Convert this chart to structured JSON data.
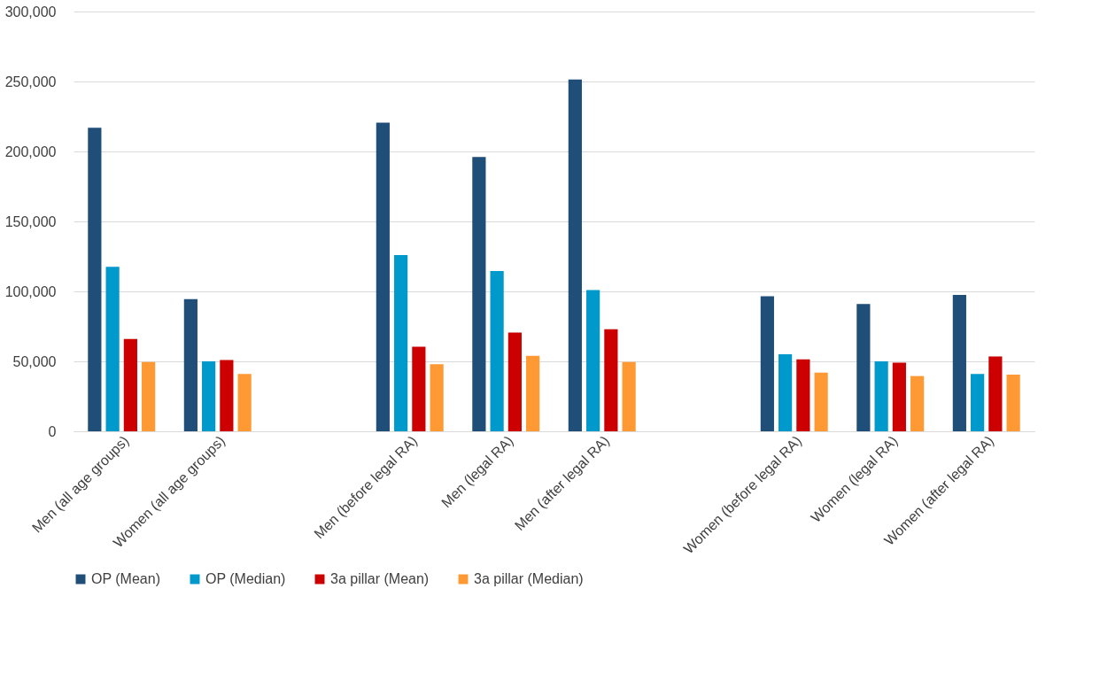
{
  "chart_data": {
    "type": "bar",
    "categories": [
      "Men (all age groups)",
      "Women (all age groups)",
      null,
      "Men (before legal RA)",
      "Men (legal RA)",
      "Men (after legal RA)",
      null,
      "Women (before legal RA)",
      "Women (legal RA)",
      "Women (after legal RA)"
    ],
    "series": [
      {
        "name": "OP (Mean)",
        "color": "#1f4e79",
        "values": [
          217000,
          94500,
          null,
          220500,
          196000,
          251500,
          null,
          96500,
          91000,
          97500
        ]
      },
      {
        "name": "OP (Median)",
        "color": "#0099cc",
        "values": [
          117500,
          50000,
          null,
          126000,
          114500,
          101000,
          null,
          55000,
          50000,
          41000
        ]
      },
      {
        "name": "3a pillar (Mean)",
        "color": "#cc0000",
        "values": [
          66000,
          51000,
          null,
          60500,
          70500,
          73000,
          null,
          51500,
          49000,
          53500
        ]
      },
      {
        "name": "3a pillar (Median)",
        "color": "#ff9933",
        "values": [
          49500,
          41000,
          null,
          48000,
          54000,
          49500,
          null,
          42000,
          39500,
          40500
        ]
      }
    ],
    "ylim": [
      0,
      300000
    ],
    "yticks": [
      0,
      {
        "value": 50000,
        "label": "50,000"
      },
      {
        "value": 100000,
        "label": "100,000"
      },
      {
        "value": 150000,
        "label": "150,000"
      },
      {
        "value": 200000,
        "label": "200,000"
      },
      {
        "value": 250000,
        "label": "250,000"
      },
      {
        "value": 300000,
        "label": "300,000"
      }
    ],
    "grid": "y",
    "legend": "bottom"
  }
}
